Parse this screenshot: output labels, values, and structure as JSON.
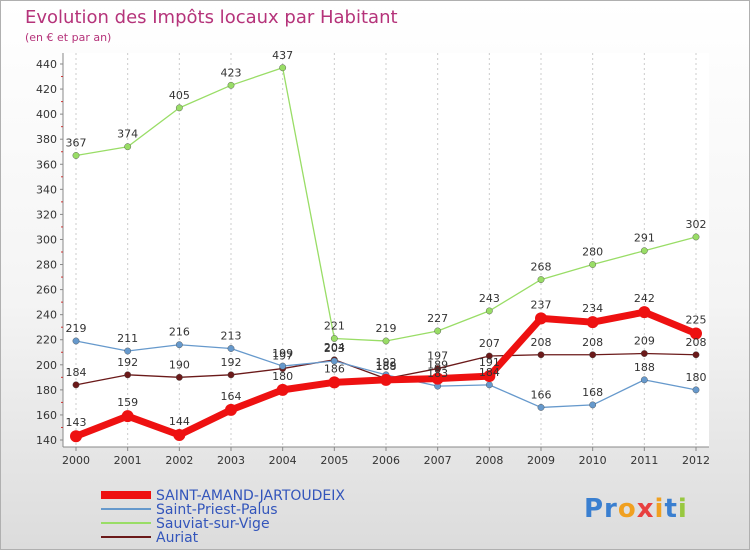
{
  "chart_data": {
    "type": "line",
    "title": "Evolution des Impôts locaux par Habitant",
    "subtitle": "(en € et par an)",
    "xlabel": "",
    "ylabel": "",
    "ylim": [
      140,
      440
    ],
    "yticks": [
      140,
      160,
      180,
      200,
      220,
      240,
      260,
      280,
      300,
      320,
      340,
      360,
      380,
      400,
      420,
      440
    ],
    "x": [
      "2000",
      "2001",
      "2002",
      "2003",
      "2004",
      "2005",
      "2006",
      "2007",
      "2008",
      "2009",
      "2010",
      "2011",
      "2012"
    ],
    "grid": "vertical dashed",
    "legend_position": "bottom-left",
    "series": [
      {
        "name": "Auriat",
        "color": "#6b1a1a",
        "values": [
          184,
          192,
          190,
          192,
          197,
          204,
          189,
          197,
          207,
          208,
          208,
          209,
          208
        ],
        "labels": [
          "184",
          "192",
          "190",
          "192",
          "197",
          "204",
          "189",
          "197",
          "207",
          "208",
          "208",
          "209",
          "208"
        ]
      },
      {
        "name": "Sauviat-sur-Vige",
        "color": "#99dd66",
        "values": [
          367,
          374,
          405,
          423,
          437,
          221,
          219,
          227,
          243,
          268,
          280,
          291,
          302
        ],
        "labels": [
          "367",
          "374",
          "405",
          "423",
          "437",
          "221",
          "219",
          "227",
          "243",
          "268",
          "280",
          "291",
          "302"
        ]
      },
      {
        "name": "Saint-Priest-Palus",
        "color": "#6699cc",
        "values": [
          219,
          211,
          216,
          213,
          199,
          203,
          192,
          183,
          184,
          166,
          168,
          188,
          180
        ],
        "labels": [
          "219",
          "211",
          "216",
          "213",
          "199",
          "203",
          "192",
          "183",
          "184",
          "166",
          "168",
          "188",
          "180"
        ]
      },
      {
        "name": "SAINT-AMAND-JARTOUDEIX",
        "color": "#ee1111",
        "values": [
          143,
          159,
          144,
          164,
          180,
          186,
          188,
          189,
          191,
          237,
          234,
          242,
          225
        ],
        "labels": [
          "143",
          "159",
          "144",
          "164",
          "180",
          "186",
          "188",
          "189",
          "191",
          "237",
          "234",
          "242",
          "225"
        ]
      }
    ],
    "legend": [
      {
        "name": "SAINT-AMAND-JARTOUDEIX",
        "color": "#ee1111"
      },
      {
        "name": "Saint-Priest-Palus",
        "color": "#6699cc"
      },
      {
        "name": "Sauviat-sur-Vige",
        "color": "#99dd66"
      },
      {
        "name": "Auriat",
        "color": "#6b1a1a"
      }
    ]
  },
  "logo": {
    "parts": [
      "Pr",
      "o",
      "x",
      "i",
      "t",
      "i"
    ]
  }
}
